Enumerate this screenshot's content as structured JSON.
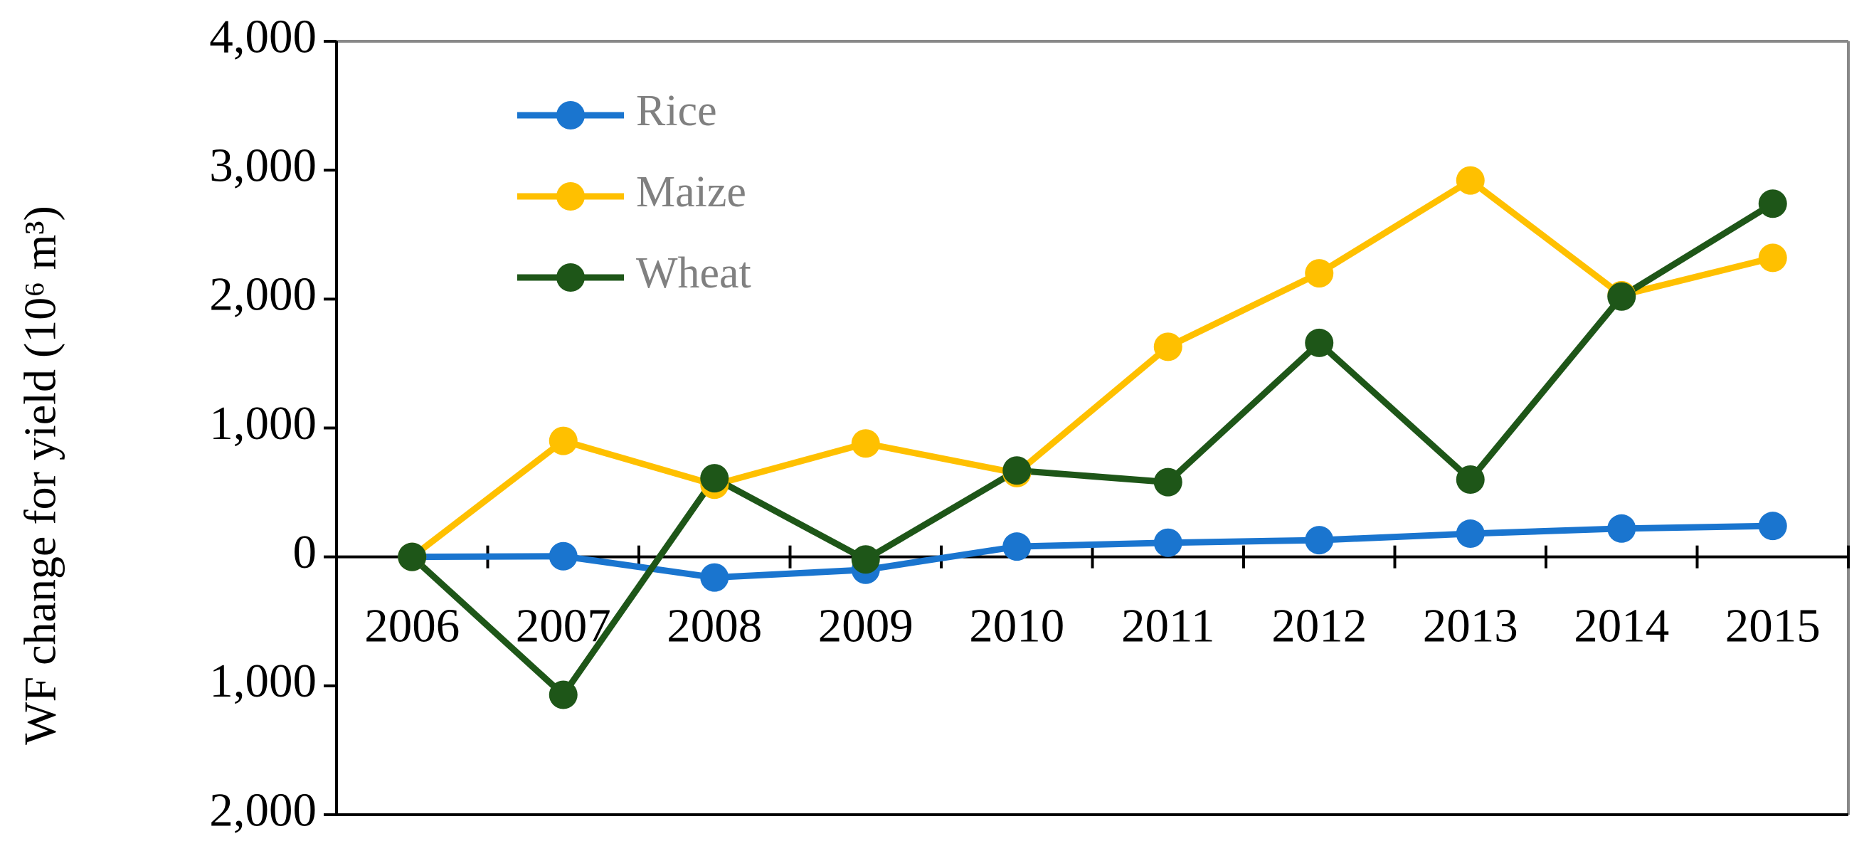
{
  "chart_data": {
    "type": "line",
    "y_label": "WF change for yield (10⁶ m³)",
    "categories": [
      "2006",
      "2007",
      "2008",
      "2009",
      "2010",
      "2011",
      "2012",
      "2013",
      "2014",
      "2015"
    ],
    "series": [
      {
        "name": "Rice",
        "color": "#1a75cf",
        "values": [
          0,
          5,
          -160,
          -100,
          80,
          110,
          130,
          180,
          220,
          240
        ]
      },
      {
        "name": "Maize",
        "color": "#ffc000",
        "values": [
          0,
          900,
          560,
          880,
          650,
          1630,
          2200,
          2920,
          2030,
          2320
        ]
      },
      {
        "name": "Wheat",
        "color": "#1e5618",
        "values": [
          0,
          -1070,
          610,
          -20,
          670,
          580,
          1660,
          600,
          2020,
          2740
        ]
      }
    ],
    "ylim": [
      -2000,
      4000
    ],
    "yticks": [
      {
        "value": -2000,
        "label": "2,000"
      },
      {
        "value": -1000,
        "label": "1,000"
      },
      0,
      {
        "value": 1000,
        "label": "1,000"
      },
      {
        "value": 2000,
        "label": "2,000"
      },
      {
        "value": 3000,
        "label": "3,000"
      },
      {
        "value": 4000,
        "label": "4,000"
      }
    ],
    "legend": "upper-left"
  }
}
